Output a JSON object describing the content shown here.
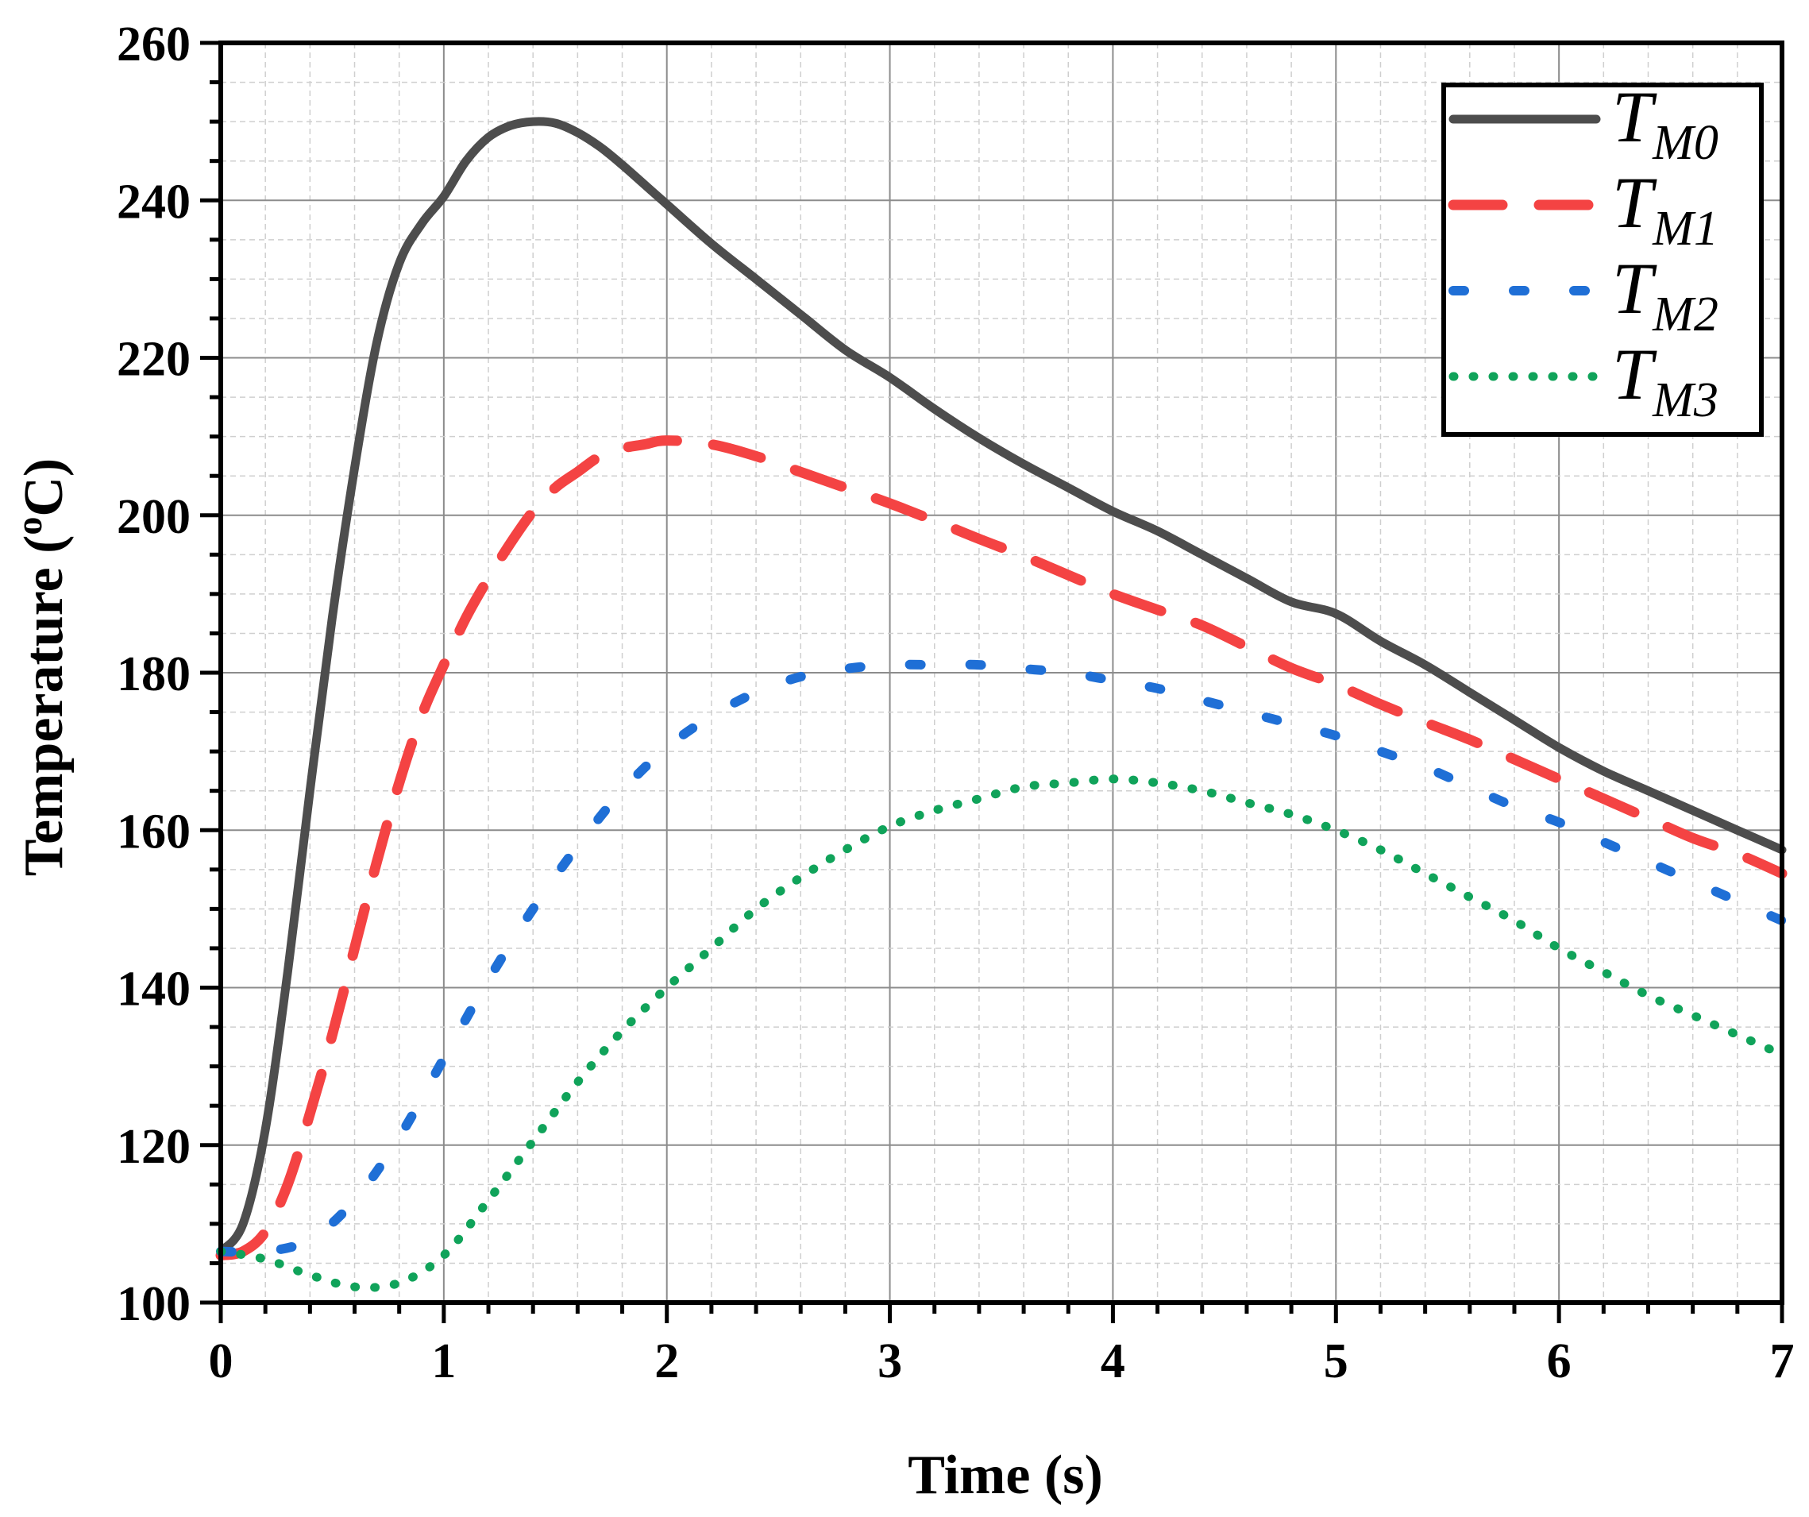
{
  "chart_data": {
    "type": "line",
    "title": "",
    "xlabel": "Time (s)",
    "ylabel": "Temperature (°C)",
    "ylabel_parts": {
      "pre": "Temperature (",
      "sup": "o",
      "post": "C)"
    },
    "xlim": [
      0,
      7
    ],
    "ylim": [
      100,
      260
    ],
    "xticks": [
      0,
      1,
      2,
      3,
      4,
      5,
      6,
      7
    ],
    "yticks": [
      100,
      120,
      140,
      160,
      180,
      200,
      220,
      240,
      260
    ],
    "grid": true,
    "legend_position": "top-right",
    "series": [
      {
        "name": "TM0",
        "label_main": "T",
        "label_sub": "M0",
        "color": "#4d4d4d",
        "style": "solid",
        "x": [
          0,
          0.1,
          0.2,
          0.3,
          0.4,
          0.5,
          0.6,
          0.7,
          0.8,
          0.9,
          1.0,
          1.1,
          1.2,
          1.3,
          1.4,
          1.5,
          1.6,
          1.7,
          1.8,
          1.9,
          2.0,
          2.2,
          2.4,
          2.6,
          2.8,
          3.0,
          3.2,
          3.4,
          3.6,
          3.8,
          4.0,
          4.2,
          4.4,
          4.6,
          4.8,
          5.0,
          5.2,
          5.4,
          5.6,
          5.8,
          6.0,
          6.2,
          6.4,
          6.6,
          6.8,
          7.0
        ],
        "y": [
          106.5,
          110,
          122,
          142,
          165,
          187,
          206,
          222,
          232,
          237,
          240.5,
          245,
          248,
          249.5,
          250,
          249.8,
          248.6,
          246.8,
          244.5,
          242,
          239.5,
          234.5,
          230,
          225.5,
          221,
          217.5,
          213.5,
          209.8,
          206.5,
          203.5,
          200.5,
          198,
          195,
          192,
          189,
          187.5,
          184,
          181,
          177.5,
          174,
          170.5,
          167.5,
          165,
          162.5,
          160,
          157.5
        ]
      },
      {
        "name": "TM1",
        "label_main": "T",
        "label_sub": "M1",
        "color": "#f44343",
        "style": "dashed",
        "x": [
          0,
          0.1,
          0.2,
          0.3,
          0.4,
          0.5,
          0.6,
          0.7,
          0.8,
          0.9,
          1.0,
          1.1,
          1.2,
          1.3,
          1.4,
          1.5,
          1.6,
          1.7,
          1.8,
          1.9,
          2.0,
          2.2,
          2.4,
          2.6,
          2.8,
          3.0,
          3.2,
          3.4,
          3.6,
          3.8,
          4.0,
          4.2,
          4.4,
          4.6,
          4.8,
          5.0,
          5.2,
          5.4,
          5.6,
          5.8,
          6.0,
          6.2,
          6.4,
          6.6,
          6.8,
          7.0
        ],
        "y": [
          106,
          106.5,
          109,
          115,
          124,
          134,
          145,
          156,
          166,
          174.5,
          181,
          187,
          192,
          196.5,
          200.5,
          203.5,
          205.5,
          207.5,
          208.5,
          209,
          209.5,
          209,
          207.5,
          205.5,
          203.5,
          201.5,
          199.3,
          197,
          194.8,
          192.4,
          190,
          188,
          186,
          183.3,
          180.6,
          178.5,
          176,
          173.7,
          171.5,
          169,
          166.5,
          164,
          161.5,
          159,
          157,
          154.5
        ]
      },
      {
        "name": "TM2",
        "label_main": "T",
        "label_sub": "M2",
        "color": "#1f6fd6",
        "style": "dashdot",
        "x": [
          0,
          0.2,
          0.4,
          0.6,
          0.8,
          1.0,
          1.2,
          1.4,
          1.6,
          1.8,
          2.0,
          2.2,
          2.4,
          2.6,
          2.8,
          3.0,
          3.2,
          3.4,
          3.6,
          3.8,
          4.0,
          4.2,
          4.4,
          4.6,
          4.8,
          5.0,
          5.2,
          5.4,
          5.6,
          5.8,
          6.0,
          6.2,
          6.4,
          6.6,
          6.8,
          7.0
        ],
        "y": [
          106.5,
          106.5,
          108,
          113,
          121,
          131,
          141,
          150,
          158,
          165,
          170.5,
          174.5,
          177.5,
          179.5,
          180.5,
          181,
          181,
          181,
          180.5,
          180,
          179,
          178,
          176.5,
          175,
          173.5,
          172,
          170,
          168,
          165.5,
          163,
          161,
          158.5,
          156,
          153.5,
          151,
          148.5
        ]
      },
      {
        "name": "TM3",
        "label_main": "T",
        "label_sub": "M3",
        "color": "#10a35a",
        "style": "dotted",
        "x": [
          0,
          0.2,
          0.4,
          0.6,
          0.8,
          1.0,
          1.2,
          1.4,
          1.6,
          1.8,
          2.0,
          2.2,
          2.4,
          2.6,
          2.8,
          3.0,
          3.2,
          3.4,
          3.6,
          3.8,
          4.0,
          4.2,
          4.4,
          4.6,
          4.8,
          5.0,
          5.2,
          5.4,
          5.6,
          5.8,
          6.0,
          6.2,
          6.4,
          6.6,
          6.8,
          7.0
        ],
        "y": [
          106.5,
          105.5,
          103.5,
          102,
          102.5,
          106,
          113,
          120.5,
          128,
          134.5,
          140,
          145,
          150,
          154,
          157.5,
          160.5,
          162.5,
          164,
          165.5,
          166,
          166.5,
          166,
          165,
          163.5,
          162,
          160,
          157.5,
          154.5,
          151.5,
          148.5,
          145,
          142,
          139,
          136.5,
          134,
          131.5
        ]
      }
    ]
  }
}
